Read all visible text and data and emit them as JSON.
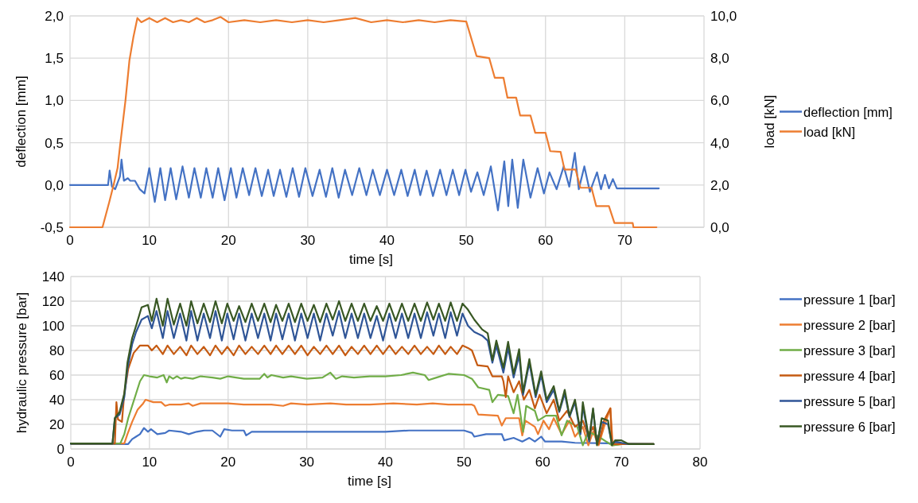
{
  "chart_data": [
    {
      "type": "line",
      "xlabel": "time [s]",
      "ylabel": "deflection [mm]",
      "y2label": "load [kN]",
      "grid": true,
      "legend": "right",
      "xlim": [
        0,
        80
      ],
      "xticks": [
        0,
        10,
        20,
        30,
        40,
        50,
        60,
        70,
        {
          "value": 80,
          "label": null
        }
      ],
      "ylim": [
        -0.5,
        2
      ],
      "yticks": [
        {
          "value": -0.5,
          "label": "-0,5"
        },
        {
          "value": 0,
          "label": "0,0"
        },
        {
          "value": 0.5,
          "label": "0,5"
        },
        {
          "value": 1,
          "label": "1,0"
        },
        {
          "value": 1.5,
          "label": "1,5"
        },
        {
          "value": 2,
          "label": "2,0"
        }
      ],
      "y2lim": [
        0,
        10
      ],
      "y2ticks": [
        {
          "value": 0,
          "label": "0,0"
        },
        {
          "value": 2,
          "label": "2,0"
        },
        {
          "value": 4,
          "label": "4,0"
        },
        {
          "value": 6,
          "label": "6,0"
        },
        {
          "value": 8,
          "label": "8,0"
        },
        {
          "value": 10,
          "label": "10,0"
        }
      ],
      "series": [
        {
          "name": "deflection [mm]",
          "color": "#4472c4",
          "x": [
            0,
            4.8,
            5.0,
            5.3,
            5.7,
            6.3,
            6.5,
            6.8,
            7.3,
            7.6,
            8.2,
            8.8,
            9.4,
            10.0,
            10.7,
            11.4,
            12.0,
            12.7,
            13.4,
            14.2,
            15.0,
            15.7,
            16.5,
            17.2,
            18.0,
            18.7,
            19.5,
            20.3,
            21.0,
            21.8,
            22.6,
            23.4,
            24.2,
            25.0,
            25.7,
            26.5,
            27.3,
            28.1,
            28.9,
            29.7,
            30.6,
            31.5,
            32.3,
            33.1,
            33.9,
            34.7,
            35.6,
            36.5,
            37.4,
            38.2,
            39.1,
            40.0,
            40.9,
            41.8,
            42.6,
            43.5,
            44.2,
            45.0,
            45.8,
            46.7,
            47.5,
            48.3,
            49.1,
            49.9,
            50.6,
            51.4,
            52.2,
            53.1,
            54.0,
            54.8,
            55.3,
            55.8,
            56.5,
            57.2,
            58.1,
            59.0,
            59.8,
            60.5,
            61.4,
            62.3,
            63.0,
            63.7,
            64.2,
            64.9,
            65.6,
            66.5,
            67.0,
            67.5,
            68.0,
            68.5,
            69.0,
            70.0,
            74.3
          ],
          "values": [
            0,
            0,
            0.17,
            -0.02,
            -0.05,
            0.1,
            0.3,
            0.05,
            0.08,
            0.05,
            0.05,
            -0.05,
            -0.1,
            0.2,
            -0.2,
            0.2,
            -0.18,
            0.2,
            -0.17,
            0.22,
            -0.15,
            0.2,
            -0.15,
            0.2,
            -0.15,
            0.2,
            -0.18,
            0.2,
            -0.15,
            0.2,
            -0.12,
            0.2,
            -0.13,
            0.18,
            -0.13,
            0.18,
            -0.14,
            0.2,
            -0.14,
            0.2,
            -0.13,
            0.18,
            -0.14,
            0.2,
            -0.15,
            0.18,
            -0.12,
            0.2,
            -0.12,
            0.18,
            -0.12,
            0.18,
            -0.12,
            0.18,
            -0.13,
            0.18,
            -0.12,
            0.17,
            -0.13,
            0.18,
            -0.12,
            0.18,
            -0.12,
            0.18,
            -0.08,
            0.15,
            -0.12,
            0.22,
            -0.3,
            0.28,
            -0.25,
            0.3,
            -0.27,
            0.3,
            -0.15,
            0.2,
            -0.1,
            0.15,
            -0.05,
            0.22,
            -0.02,
            0.38,
            -0.05,
            0.22,
            -0.08,
            0.15,
            -0.05,
            0.12,
            -0.04,
            0.07,
            -0.04,
            -0.04,
            -0.04
          ]
        },
        {
          "name": "load [kN]",
          "color": "#ed7d31",
          "axis": "y2",
          "x": [
            0,
            4.1,
            4.96,
            5.5,
            6.0,
            6.3,
            7.0,
            7.5,
            8.0,
            8.5,
            9.0,
            10,
            11,
            12,
            13,
            14,
            15,
            16,
            17,
            18,
            19,
            20,
            22,
            24,
            26,
            28,
            30,
            32,
            34,
            36,
            38,
            40,
            42,
            44,
            46,
            48,
            50,
            51.3,
            52.9,
            53.6,
            54.7,
            55.2,
            56.3,
            56.8,
            58.1,
            58.7,
            60.0,
            60.6,
            61.9,
            62.4,
            63.8,
            64.4,
            65.8,
            66.4,
            68.0,
            68.7,
            71.0,
            71.1,
            74.0
          ],
          "values": [
            0,
            0,
            1.2,
            2.0,
            2.8,
            3.8,
            6.0,
            7.9,
            9.0,
            9.9,
            9.7,
            9.9,
            9.7,
            9.9,
            9.7,
            9.8,
            9.7,
            9.9,
            9.7,
            9.8,
            9.95,
            9.7,
            9.8,
            9.7,
            9.8,
            9.7,
            9.8,
            9.7,
            9.8,
            9.9,
            9.7,
            9.8,
            9.7,
            9.8,
            9.7,
            9.8,
            9.73,
            8.1,
            8.0,
            7.07,
            7.07,
            6.13,
            6.13,
            5.29,
            5.29,
            4.47,
            4.47,
            3.6,
            3.57,
            2.73,
            2.73,
            1.87,
            1.87,
            1.0,
            1.0,
            0.2,
            0.2,
            0,
            0
          ]
        }
      ]
    },
    {
      "type": "line",
      "xlabel": "time [s]",
      "ylabel": "hydraulic pressure [bar]",
      "grid": true,
      "legend": "right",
      "xlim": [
        0,
        80
      ],
      "xticks": [
        0,
        10,
        20,
        30,
        40,
        50,
        60,
        70,
        80
      ],
      "ylim": [
        0,
        140
      ],
      "yticks": [
        0,
        20,
        40,
        60,
        80,
        100,
        120,
        140
      ],
      "series": [
        {
          "name": "pressure 1 [bar]",
          "color": "#4472c4",
          "x": [
            0,
            7.3,
            7.8,
            8.3,
            8.8,
            9.3,
            9.8,
            10.2,
            11,
            12,
            12.5,
            14,
            15,
            16,
            17,
            18,
            19,
            19.5,
            20.5,
            22,
            22.3,
            23,
            24,
            30,
            40,
            43,
            46,
            50,
            51.0,
            51.3,
            52.8,
            54.8,
            55.1,
            56.3,
            57.4,
            58.3,
            59.0,
            59.8,
            60.3,
            62.4,
            64.1,
            74.1
          ],
          "values": [
            4,
            4,
            8,
            10,
            12,
            17,
            14,
            16,
            12,
            13,
            15,
            14,
            12,
            14,
            15,
            15,
            10,
            16,
            15,
            15,
            11,
            14,
            14,
            14,
            14,
            15,
            15,
            15,
            13,
            10,
            12,
            12,
            7,
            9,
            6,
            9,
            6,
            10,
            6,
            6,
            5,
            4
          ]
        },
        {
          "name": "pressure 2 [bar]",
          "color": "#ed7d31",
          "x": [
            0,
            6.8,
            7.2,
            7.8,
            8.5,
            9.2,
            9.5,
            10.5,
            11.5,
            12,
            12.5,
            14,
            15,
            15.5,
            16.5,
            20,
            22,
            24,
            25.5,
            27,
            28,
            30,
            33,
            35,
            38,
            41,
            44,
            46,
            48,
            51,
            51.3,
            51.8,
            54.3,
            54.8,
            55.3,
            57.0,
            57.4,
            57.8,
            59.0,
            59.4,
            60.1,
            60.8,
            61.4,
            62.4,
            63.4,
            64.1,
            65.1,
            65.8,
            66.4,
            67.1,
            67.8,
            68.6,
            68.9,
            70,
            74.1
          ],
          "values": [
            4.5,
            4.5,
            12,
            22,
            32,
            37,
            40,
            38,
            38,
            35,
            36,
            36,
            37,
            35,
            37,
            37,
            36,
            36,
            36,
            35,
            37,
            36,
            37,
            36,
            36,
            37,
            36,
            37,
            36,
            36,
            35,
            28,
            27,
            19,
            25,
            25,
            11,
            23,
            18,
            12,
            23,
            16,
            25,
            12,
            23,
            10,
            18,
            3,
            14,
            3,
            18,
            33,
            3,
            4,
            4
          ]
        },
        {
          "name": "pressure 3 [bar]",
          "color": "#70ad47",
          "x": [
            0,
            6.3,
            6.8,
            7.3,
            7.8,
            8.3,
            8.8,
            9.3,
            10.0,
            11.0,
            11.8,
            12.2,
            12.5,
            13.0,
            13.5,
            14.0,
            14.5,
            15.5,
            16.5,
            18,
            19,
            20,
            22,
            24,
            24.6,
            25,
            25.5,
            27,
            28,
            30,
            32,
            33,
            33.7,
            34.5,
            36,
            38,
            40,
            42,
            43.5,
            45,
            45.5,
            46.5,
            48,
            50,
            51.0,
            51.8,
            53.2,
            53.6,
            54.3,
            55.6,
            56.3,
            56.8,
            57.5,
            57.9,
            59.0,
            59.4,
            60.4,
            61.7,
            62.4,
            63.1,
            64.4,
            65.1,
            65.8,
            67.1,
            68.8,
            70,
            74.1
          ],
          "values": [
            4.5,
            4.5,
            12,
            25,
            35,
            45,
            55,
            60,
            59,
            58,
            60,
            54,
            59,
            57,
            59,
            57,
            58,
            57,
            59,
            58,
            57,
            59,
            57,
            57,
            61,
            58,
            60,
            58,
            59,
            57,
            58,
            62,
            57,
            59,
            58,
            59,
            59,
            60,
            62,
            60,
            56,
            58,
            61,
            60,
            57,
            50,
            48,
            38,
            44,
            43,
            29,
            44,
            14,
            35,
            31,
            23,
            27,
            27,
            11,
            23,
            18,
            3,
            14,
            10,
            3,
            4,
            4
          ]
        },
        {
          "name": "pressure 4 [bar]",
          "color": "#c55a11",
          "x": [
            0,
            5.6,
            5.8,
            6.0,
            6.5,
            6.8,
            7.3,
            8.0,
            8.8,
            9.8,
            10.3,
            10.9,
            11.7,
            12.3,
            13.1,
            13.9,
            14.7,
            15.3,
            16.1,
            16.9,
            17.7,
            18.4,
            19.2,
            19.9,
            20.7,
            21.4,
            22.2,
            23.0,
            23.8,
            24.6,
            25.4,
            26.1,
            26.9,
            27.7,
            28.5,
            29.3,
            30.1,
            30.9,
            31.7,
            32.5,
            33.3,
            34.1,
            34.9,
            35.7,
            36.5,
            37.3,
            38.1,
            38.9,
            39.7,
            40.5,
            41.3,
            42.1,
            42.9,
            43.7,
            44.5,
            45.3,
            46.1,
            46.8,
            47.6,
            48.3,
            49.1,
            49.8,
            50.5,
            51.0,
            51.7,
            53.0,
            53.6,
            54.8,
            55.0,
            55.3,
            55.6,
            56.3,
            57.0,
            57.6,
            58.3,
            59.0,
            59.6,
            60.5,
            61.4,
            62.1,
            63.1,
            64.1,
            65.1,
            65.8,
            66.4,
            67.1,
            67.8,
            68.6,
            68.8,
            70.9,
            74.1
          ],
          "values": [
            4.5,
            4.5,
            38,
            24,
            22,
            45,
            65,
            78,
            84,
            84,
            80,
            84,
            77,
            84,
            77,
            83,
            76,
            84,
            77,
            83,
            76,
            84,
            77,
            83,
            76,
            84,
            77,
            83,
            77,
            84,
            77,
            84,
            77,
            84,
            77,
            84,
            76,
            83,
            77,
            84,
            77,
            84,
            76,
            83,
            77,
            84,
            77,
            84,
            77,
            84,
            77,
            83,
            77,
            84,
            77,
            83,
            77,
            84,
            77,
            83,
            77,
            84,
            82,
            80,
            68,
            67,
            59,
            59,
            55,
            42,
            59,
            46,
            55,
            40,
            48,
            33,
            44,
            29,
            40,
            23,
            31,
            18,
            23,
            10,
            18,
            4,
            23,
            33,
            4,
            4,
            4
          ]
        },
        {
          "name": "pressure 5 [bar]",
          "color": "#2f5597",
          "x": [
            0,
            5.3,
            5.6,
            6.2,
            6.8,
            7.2,
            7.8,
            8.3,
            9.0,
            9.8,
            10.3,
            10.9,
            11.7,
            12.3,
            13.1,
            13.9,
            14.7,
            15.3,
            16.1,
            16.9,
            17.7,
            18.4,
            19.2,
            19.9,
            20.7,
            21.4,
            22.2,
            23.0,
            23.8,
            24.6,
            25.4,
            26.1,
            26.9,
            27.7,
            28.5,
            29.3,
            30.1,
            30.9,
            31.7,
            32.5,
            33.3,
            34.1,
            34.9,
            35.7,
            36.5,
            37.3,
            38.1,
            38.9,
            39.7,
            40.5,
            41.3,
            42.1,
            42.9,
            43.7,
            44.5,
            45.3,
            46.1,
            46.8,
            47.6,
            48.3,
            49.1,
            49.8,
            50.5,
            51.3,
            52.3,
            53.0,
            53.6,
            54.1,
            55.0,
            55.6,
            56.3,
            57.0,
            57.5,
            58.3,
            59.1,
            59.8,
            60.5,
            61.4,
            62.1,
            62.8,
            63.4,
            64.1,
            64.8,
            65.1,
            65.9,
            66.4,
            66.9,
            67.5,
            68.3,
            68.8,
            69.2,
            70.0,
            70.9,
            74.1
          ],
          "values": [
            4.5,
            4.5,
            25,
            28,
            42,
            65,
            85,
            95,
            105,
            108,
            98,
            112,
            90,
            112,
            90,
            110,
            88,
            112,
            88,
            110,
            90,
            112,
            88,
            110,
            89,
            110,
            88,
            110,
            90,
            110,
            88,
            110,
            89,
            110,
            88,
            110,
            90,
            110,
            88,
            110,
            92,
            112,
            90,
            110,
            90,
            110,
            90,
            108,
            88,
            110,
            90,
            110,
            90,
            110,
            90,
            111,
            92,
            110,
            90,
            111,
            92,
            110,
            100,
            95,
            92,
            88,
            70,
            84,
            62,
            82,
            58,
            76,
            44,
            70,
            42,
            60,
            38,
            48,
            30,
            45,
            26,
            38,
            12,
            35,
            6,
            32,
            4,
            22,
            20,
            4,
            6,
            5,
            4,
            4
          ]
        },
        {
          "name": "pressure 6 [bar]",
          "color": "#385723",
          "x": [
            0,
            5.3,
            5.6,
            6.2,
            6.8,
            7.2,
            7.8,
            8.3,
            9.0,
            9.8,
            10.3,
            10.9,
            11.7,
            12.3,
            13.1,
            13.9,
            14.7,
            15.3,
            16.1,
            16.9,
            17.7,
            18.4,
            19.2,
            19.9,
            20.7,
            21.4,
            22.2,
            23.0,
            23.8,
            24.6,
            25.4,
            26.1,
            26.9,
            27.7,
            28.5,
            29.3,
            30.1,
            30.9,
            31.7,
            32.5,
            33.3,
            34.1,
            34.9,
            35.7,
            36.5,
            37.3,
            38.1,
            38.9,
            39.7,
            40.5,
            41.3,
            42.1,
            42.9,
            43.7,
            44.5,
            45.3,
            46.1,
            46.8,
            47.6,
            48.3,
            49.1,
            49.8,
            50.5,
            51.3,
            52.3,
            53.0,
            53.6,
            54.1,
            55.0,
            55.6,
            56.3,
            57.0,
            57.5,
            58.3,
            59.1,
            59.8,
            60.5,
            61.4,
            62.1,
            62.8,
            63.4,
            64.1,
            64.8,
            65.1,
            65.9,
            66.4,
            66.9,
            67.5,
            68.3,
            68.8,
            69.2,
            70.0,
            70.9,
            74.1
          ],
          "values": [
            4.5,
            4.5,
            25,
            30,
            45,
            70,
            90,
            100,
            115,
            117,
            104,
            122,
            100,
            122,
            101,
            118,
            100,
            120,
            102,
            118,
            103,
            120,
            102,
            118,
            104,
            116,
            103,
            118,
            104,
            118,
            103,
            117,
            104,
            118,
            103,
            118,
            104,
            117,
            103,
            118,
            105,
            120,
            104,
            118,
            104,
            118,
            104,
            116,
            104,
            118,
            104,
            118,
            104,
            118,
            104,
            119,
            105,
            118,
            104,
            119,
            104,
            118,
            113,
            105,
            97,
            94,
            72,
            88,
            66,
            87,
            61,
            81,
            46,
            73,
            44,
            63,
            40,
            51,
            31,
            48,
            27,
            40,
            14,
            38,
            8,
            33,
            3,
            25,
            23,
            3,
            7,
            7,
            4,
            4
          ]
        }
      ]
    }
  ]
}
